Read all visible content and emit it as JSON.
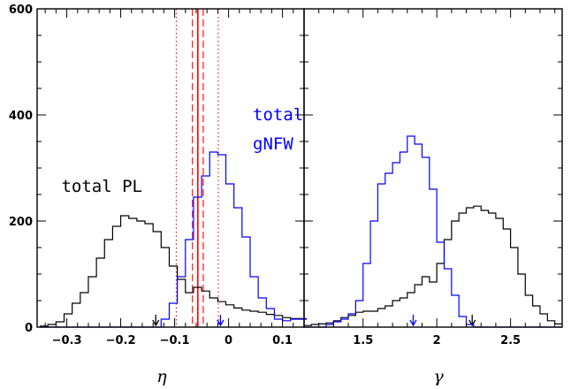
{
  "chart_data": [
    {
      "type": "histogram",
      "xlabel": "η",
      "ylabel": "",
      "xlim": [
        -0.355,
        0.14
      ],
      "ylim": [
        0,
        600
      ],
      "x_ticks": [
        -0.3,
        -0.2,
        -0.1,
        0,
        0.1
      ],
      "x_tick_labels": [
        "−0.3",
        "−0.2",
        "−0.1",
        "0",
        "0.1"
      ],
      "y_ticks": [
        0,
        200,
        400,
        600
      ],
      "y_tick_labels": [
        "0",
        "200",
        "400",
        "600"
      ],
      "bin_edges": [
        -0.35,
        -0.335,
        -0.32,
        -0.305,
        -0.29,
        -0.275,
        -0.26,
        -0.245,
        -0.23,
        -0.215,
        -0.2,
        -0.185,
        -0.17,
        -0.155,
        -0.14,
        -0.125,
        -0.11,
        -0.095,
        -0.08,
        -0.065,
        -0.05,
        -0.035,
        -0.02,
        -0.005,
        0.01,
        0.025,
        0.04,
        0.055,
        0.07,
        0.085,
        0.1,
        0.115,
        0.13,
        0.145
      ],
      "series": [
        {
          "name": "total PL",
          "color": "#000000",
          "counts": [
            2,
            5,
            10,
            25,
            45,
            65,
            95,
            130,
            165,
            190,
            210,
            205,
            200,
            195,
            180,
            150,
            115,
            90,
            65,
            75,
            68,
            55,
            48,
            42,
            36,
            32,
            30,
            28,
            24,
            22,
            18,
            16,
            16
          ],
          "marker_arrow": -0.135
        },
        {
          "name": "total gNFW",
          "color": "#0000ff",
          "counts": [
            0,
            0,
            0,
            0,
            0,
            0,
            0,
            0,
            0,
            0,
            0,
            0,
            0,
            0,
            0,
            15,
            45,
            95,
            165,
            245,
            285,
            330,
            325,
            270,
            225,
            170,
            95,
            55,
            35,
            15,
            12,
            15,
            15
          ],
          "marker_arrow": -0.015
        }
      ],
      "vlines": [
        {
          "x": -0.057,
          "color": "#ff0000",
          "style": "solid"
        },
        {
          "x": -0.067,
          "color": "#ff0000",
          "style": "dashed"
        },
        {
          "x": -0.047,
          "color": "#ff0000",
          "style": "dashed"
        },
        {
          "x": -0.097,
          "color": "#ff0000",
          "style": "dotted"
        },
        {
          "x": -0.019,
          "color": "#ff0000",
          "style": "dotted"
        }
      ],
      "annotations": [
        {
          "text": "total PL",
          "color": "#000000",
          "x": -0.31,
          "y": 255
        },
        {
          "text": "total",
          "color": "#0000ff",
          "x": 0.045,
          "y": 390
        },
        {
          "text": "gNFW",
          "color": "#0000ff",
          "x": 0.045,
          "y": 335
        }
      ]
    },
    {
      "type": "histogram",
      "xlabel": "γ",
      "ylabel": "",
      "xlim": [
        1.1,
        2.85
      ],
      "ylim": [
        0,
        600
      ],
      "x_ticks": [
        1.5,
        2,
        2.5
      ],
      "x_tick_labels": [
        "1.5",
        "2",
        "2.5"
      ],
      "bin_edges": [
        1.1,
        1.15,
        1.2,
        1.25,
        1.3,
        1.35,
        1.4,
        1.45,
        1.5,
        1.55,
        1.6,
        1.65,
        1.7,
        1.75,
        1.8,
        1.85,
        1.9,
        1.95,
        2.0,
        2.05,
        2.1,
        2.15,
        2.2,
        2.25,
        2.3,
        2.35,
        2.4,
        2.45,
        2.5,
        2.55,
        2.6,
        2.65,
        2.7,
        2.75,
        2.8,
        2.85
      ],
      "series": [
        {
          "name": "total PL",
          "color": "#000000",
          "counts": [
            3,
            5,
            6,
            8,
            12,
            18,
            22,
            28,
            30,
            30,
            35,
            40,
            50,
            55,
            65,
            80,
            95,
            85,
            120,
            165,
            200,
            215,
            225,
            228,
            220,
            215,
            205,
            185,
            150,
            100,
            60,
            40,
            25,
            12,
            6
          ],
          "marker_arrow": 2.24
        },
        {
          "name": "total gNFW",
          "color": "#0000ff",
          "counts": [
            0,
            0,
            0,
            5,
            10,
            15,
            25,
            50,
            120,
            200,
            270,
            290,
            310,
            330,
            360,
            345,
            320,
            260,
            160,
            110,
            60,
            20,
            5,
            0,
            0,
            0,
            0,
            0,
            0,
            0,
            0,
            0,
            0,
            0,
            0
          ],
          "marker_arrow": 1.84
        }
      ]
    }
  ]
}
